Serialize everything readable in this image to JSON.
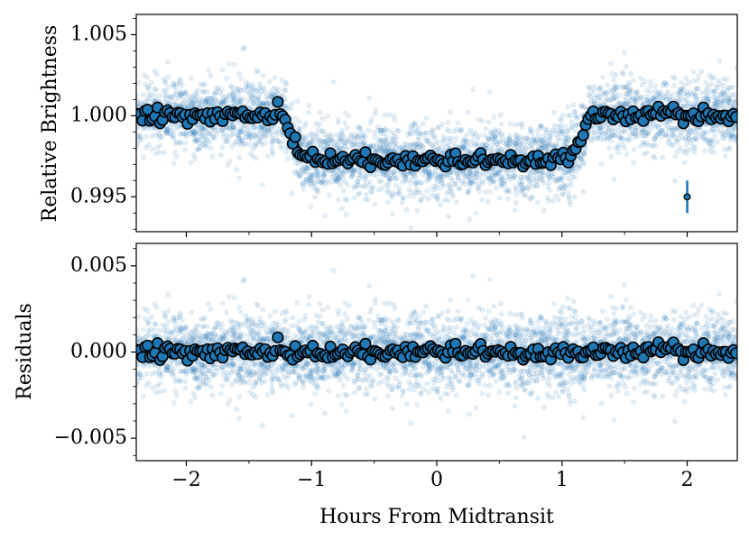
{
  "chart_data": [
    {
      "type": "scatter",
      "title": "",
      "xlabel": "Hours From Midtransit",
      "ylabel": "Relative Brightness",
      "xlim": [
        -2.4,
        2.4
      ],
      "ylim": [
        0.99285,
        1.00625
      ],
      "xticks": [
        -2,
        -1,
        0,
        1,
        2
      ],
      "xtick_labels": [
        "−2",
        "−1",
        "0",
        "1",
        "2"
      ],
      "yticks": [
        0.995,
        1.0,
        1.005
      ],
      "ytick_labels": [
        "0.995",
        "1.000",
        "1.005"
      ],
      "grid": false,
      "model": {
        "baseline": 1.0,
        "depth": 0.00255,
        "ingress_start": -1.25,
        "ingress_end": -1.05,
        "egress_start": 1.05,
        "egress_end": 1.25,
        "limb_darkening_curvature": 0.00025
      },
      "raw_points_scatter": 0.0011,
      "binned_points_scatter": 0.00022,
      "bin_width_hours": 0.02,
      "representative_error_bar": {
        "x": 2.0,
        "y": 0.995,
        "yerr": 0.001
      },
      "colors": {
        "raw": "#1f77b4",
        "binned_fill": "#1f77b4",
        "binned_edge": "#000000",
        "model_outer": "#000000",
        "model_inner": "#7f7f7f",
        "errorbar": "#1f77b4"
      }
    },
    {
      "type": "scatter",
      "title": "",
      "xlabel": "Hours From Midtransit",
      "ylabel": "Residuals",
      "xlim": [
        -2.4,
        2.4
      ],
      "ylim": [
        -0.0063,
        0.0063
      ],
      "xticks": [
        -2,
        -1,
        0,
        1,
        2
      ],
      "xtick_labels": [
        "−2",
        "−1",
        "0",
        "1",
        "2"
      ],
      "yticks": [
        -0.005,
        0.0,
        0.005
      ],
      "ytick_labels": [
        "−0.005",
        "0.000",
        "0.005"
      ],
      "grid": false,
      "raw_points_scatter": 0.0011,
      "binned_points_scatter": 0.00022,
      "colors": {
        "raw": "#1f77b4",
        "binned_fill": "#1f77b4",
        "binned_edge": "#000000"
      }
    }
  ]
}
